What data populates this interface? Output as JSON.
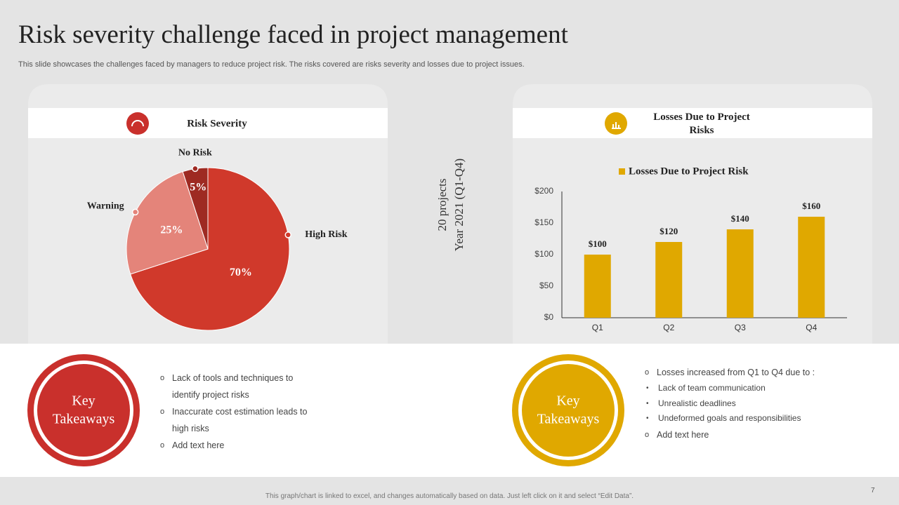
{
  "header": {
    "title": "Risk severity challenge faced in project management",
    "subtitle": "This slide showcases the challenges faced by managers to reduce project risk. The risks covered are risks severity and losses due to project issues."
  },
  "chart_data": [
    {
      "type": "pie",
      "title": "Risk Severity",
      "categories": [
        "High Risk",
        "Warning",
        "No Risk"
      ],
      "values": [
        70,
        25,
        5
      ],
      "value_labels": [
        "70%",
        "25%",
        "5%"
      ],
      "colors": [
        "#d0392b",
        "#e4847a",
        "#9e2a22"
      ]
    },
    {
      "type": "bar",
      "title": "Losses Due to Project Risks",
      "categories": [
        "Q1",
        "Q2",
        "Q3",
        "Q4"
      ],
      "series": [
        {
          "name": "Losses Due to Project Risk",
          "color": "#e0a800",
          "values": [
            100,
            120,
            140,
            160
          ],
          "value_labels": [
            "$100",
            "$120",
            "$140",
            "$160"
          ]
        }
      ],
      "ylim": [
        0,
        200
      ],
      "yticks": [
        {
          "value": 0,
          "label": "$0"
        },
        {
          "value": 50,
          "label": "$50"
        },
        {
          "value": 100,
          "label": "$100"
        },
        {
          "value": 150,
          "label": "$150"
        },
        {
          "value": 200,
          "label": "$200"
        }
      ]
    }
  ],
  "side_label": [
    "20 projects",
    "Year 2021 (Q1-Q4)"
  ],
  "takeaways": [
    {
      "heading": [
        "Key",
        "Takeaways"
      ],
      "items": [
        {
          "text": "Lack of tools and techniques to identify project risks"
        },
        {
          "text": "Inaccurate cost estimation leads to high risks"
        },
        {
          "text": "Add text here"
        }
      ]
    },
    {
      "heading": [
        "Key",
        "Takeaways"
      ],
      "items": [
        {
          "text": "Losses increased from Q1 to Q4 due to :",
          "subitems": [
            "Lack of team communication",
            "Unrealistic deadlines",
            "Undeformed goals and responsibilities"
          ]
        },
        {
          "text": "Add text here"
        }
      ]
    }
  ],
  "footer": {
    "note": "This graph/chart is linked to excel, and changes automatically based on data. Just left click on it and select “Edit Data”.",
    "page": 7
  }
}
